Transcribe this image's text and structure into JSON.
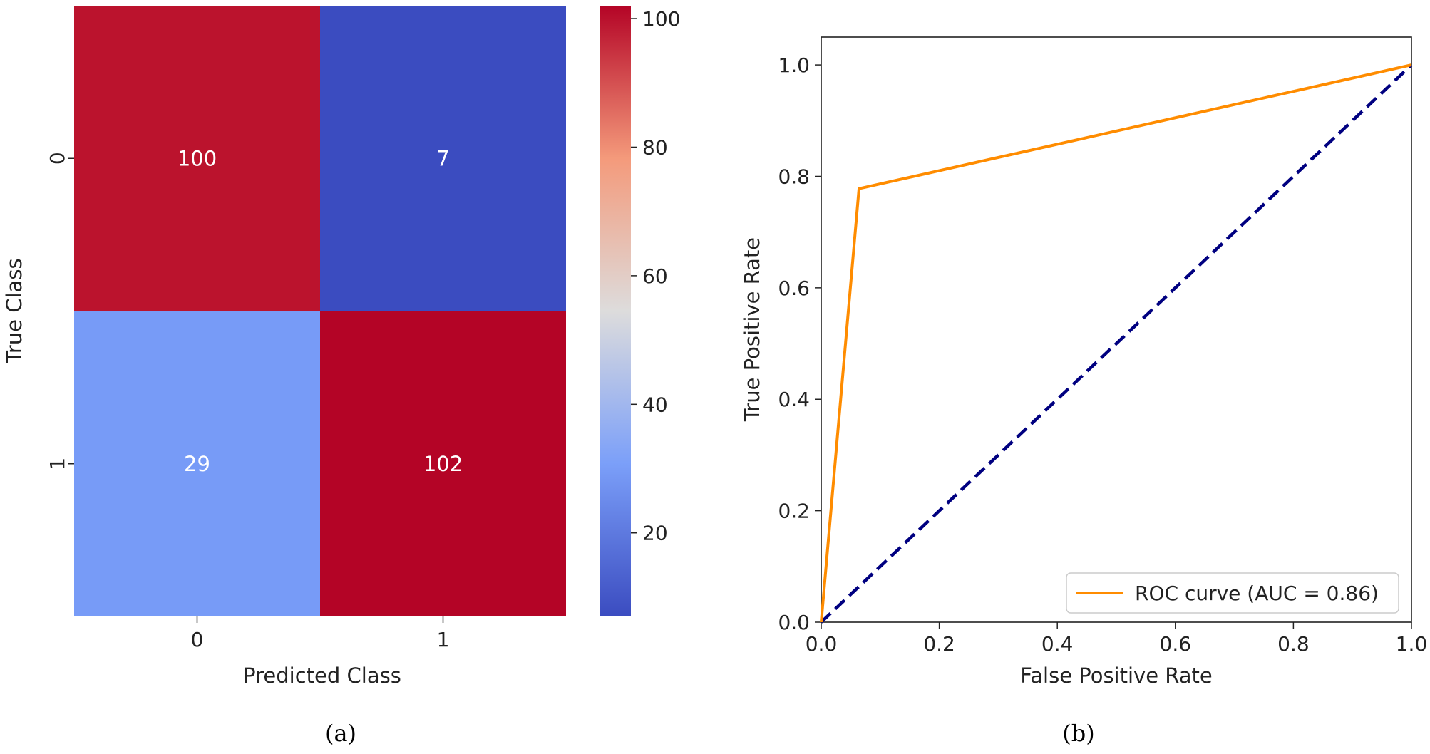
{
  "chart_data": [
    {
      "type": "heatmap",
      "caption": "(a)",
      "xlabel": "Predicted Class",
      "ylabel": "True Class",
      "x_categories": [
        "0",
        "1"
      ],
      "y_categories": [
        "0",
        "1"
      ],
      "values": [
        [
          100,
          7
        ],
        [
          29,
          102
        ]
      ],
      "colormap": "coolwarm",
      "colorbar": {
        "min": 7,
        "max": 102,
        "ticks": [
          "20",
          "40",
          "60",
          "80",
          "100"
        ]
      }
    },
    {
      "type": "line",
      "caption": "(b)",
      "xlabel": "False Positive Rate",
      "ylabel": "True Positive Rate",
      "xlim": [
        0.0,
        1.0
      ],
      "ylim": [
        0.0,
        1.05
      ],
      "xticks": [
        "0.0",
        "0.2",
        "0.4",
        "0.6",
        "0.8",
        "1.0"
      ],
      "yticks": [
        "0.0",
        "0.2",
        "0.4",
        "0.6",
        "0.8",
        "1.0"
      ],
      "legend_position": "lower-right",
      "series": [
        {
          "name": "ROC curve (AUC = 0.86)",
          "color": "#ff8c00",
          "style": "solid",
          "x": [
            0.0,
            0.064,
            1.0
          ],
          "y": [
            0.0,
            0.778,
            1.0
          ]
        },
        {
          "color": "#000080",
          "style": "dashed",
          "x": [
            0.0,
            1.0
          ],
          "y": [
            0.0,
            1.0
          ]
        }
      ]
    }
  ]
}
